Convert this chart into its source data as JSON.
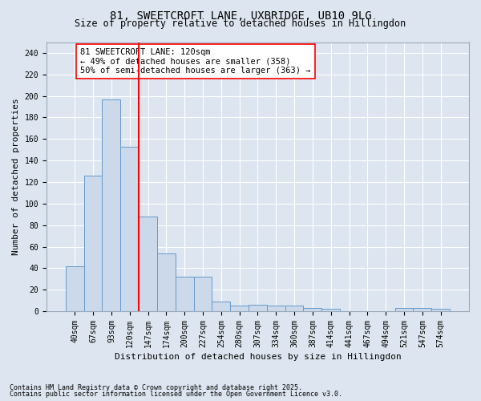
{
  "title1": "81, SWEETCROFT LANE, UXBRIDGE, UB10 9LG",
  "title2": "Size of property relative to detached houses in Hillingdon",
  "xlabel": "Distribution of detached houses by size in Hillingdon",
  "ylabel": "Number of detached properties",
  "categories": [
    "40sqm",
    "67sqm",
    "93sqm",
    "120sqm",
    "147sqm",
    "174sqm",
    "200sqm",
    "227sqm",
    "254sqm",
    "280sqm",
    "307sqm",
    "334sqm",
    "360sqm",
    "387sqm",
    "414sqm",
    "441sqm",
    "467sqm",
    "494sqm",
    "521sqm",
    "547sqm",
    "574sqm"
  ],
  "values": [
    42,
    126,
    197,
    153,
    88,
    54,
    32,
    32,
    9,
    5,
    6,
    5,
    5,
    3,
    2,
    0,
    0,
    0,
    3,
    3,
    2
  ],
  "bar_color": "#ccd9ea",
  "bar_edge_color": "#6699cc",
  "red_line_x": 3.5,
  "annotation_text": "81 SWEETCROFT LANE: 120sqm\n← 49% of detached houses are smaller (358)\n50% of semi-detached houses are larger (363) →",
  "ylim": [
    0,
    250
  ],
  "yticks": [
    0,
    20,
    40,
    60,
    80,
    100,
    120,
    140,
    160,
    180,
    200,
    220,
    240
  ],
  "footer1": "Contains HM Land Registry data © Crown copyright and database right 2025.",
  "footer2": "Contains public sector information licensed under the Open Government Licence v3.0.",
  "bg_color": "#dde6f0",
  "plot_bg_color": "#dde6f0",
  "grid_color": "#ffffff",
  "title_fontsize": 10,
  "subtitle_fontsize": 8.5,
  "axis_label_fontsize": 8,
  "tick_fontsize": 7,
  "footer_fontsize": 6,
  "annot_fontsize": 7.5
}
